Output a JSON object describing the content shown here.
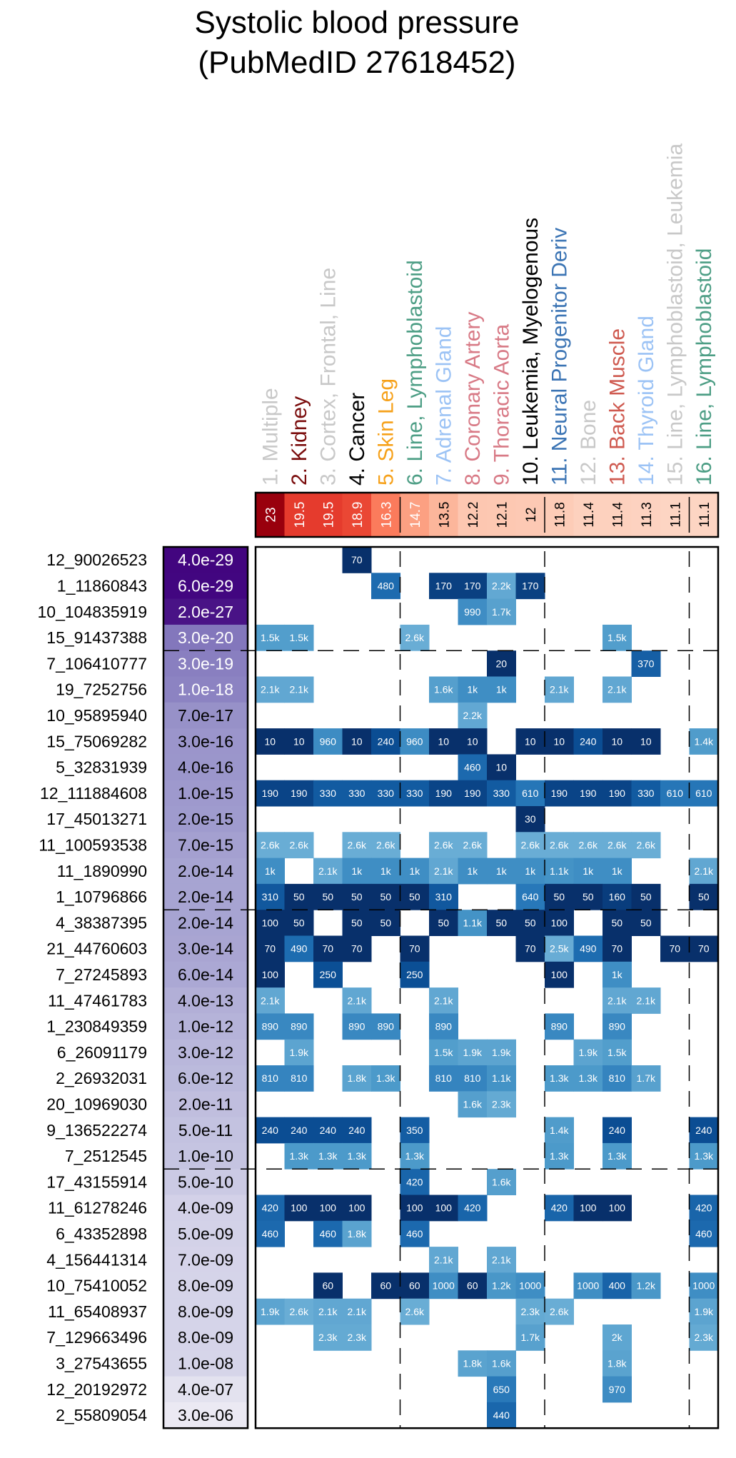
{
  "chart_data": {
    "type": "heatmap",
    "title": "Systolic blood pressure",
    "subtitle": "(PubMedID 27618452)",
    "columns": [
      {
        "label": "1. Multiple",
        "color": "#c8c8c8",
        "enrichment": "23"
      },
      {
        "label": "2. Kidney",
        "color": "#7a0c0c",
        "enrichment": "19.5"
      },
      {
        "label": "3. Cortex, Frontal, Line",
        "color": "#c8c8c8",
        "enrichment": "19.5"
      },
      {
        "label": "4. Cancer",
        "color": "#000000",
        "enrichment": "18.9"
      },
      {
        "label": "5. Skin Leg",
        "color": "#f6a11a",
        "enrichment": "16.3"
      },
      {
        "label": "6. Line, Lymphoblastoid",
        "color": "#4d9e85",
        "enrichment": "14.7"
      },
      {
        "label": "7. Adrenal Gland",
        "color": "#9cc3f5",
        "enrichment": "13.5"
      },
      {
        "label": "8. Coronary Artery",
        "color": "#d87a86",
        "enrichment": "12.2"
      },
      {
        "label": "9. Thoracic Aorta",
        "color": "#d87a86",
        "enrichment": "12.1"
      },
      {
        "label": "10. Leukemia, Myelogenous",
        "color": "#000000",
        "enrichment": "12"
      },
      {
        "label": "11. Neural Progenitor Deriv",
        "color": "#3b74b4",
        "enrichment": "11.8"
      },
      {
        "label": "12. Bone",
        "color": "#c8c8c8",
        "enrichment": "11.4"
      },
      {
        "label": "13. Back Muscle",
        "color": "#cf5a50",
        "enrichment": "11.4"
      },
      {
        "label": "14. Thyroid Gland",
        "color": "#9cc3f5",
        "enrichment": "11.3"
      },
      {
        "label": "15. Line, Lymphoblastoid, Leukemia",
        "color": "#c8c8c8",
        "enrichment": "11.1"
      },
      {
        "label": "16. Line, Lymphoblastoid",
        "color": "#4d9e85",
        "enrichment": "11.1"
      }
    ],
    "enrichment_range": [
      11.1,
      23
    ],
    "rows": [
      {
        "snp": "12_90026523",
        "pvalue": "4.0e-29",
        "cells": [
          "",
          "",
          "",
          "70",
          "",
          "",
          "",
          "",
          "",
          "",
          "",
          "",
          "",
          "",
          "",
          ""
        ]
      },
      {
        "snp": "1_11860843",
        "pvalue": "6.0e-29",
        "cells": [
          "",
          "",
          "",
          "",
          "480",
          "",
          "170",
          "170",
          "2.2k",
          "170",
          "",
          "",
          "",
          "",
          "",
          ""
        ]
      },
      {
        "snp": "10_104835919",
        "pvalue": "2.0e-27",
        "cells": [
          "",
          "",
          "",
          "",
          "",
          "",
          "",
          "990",
          "1.7k",
          "",
          "",
          "",
          "",
          "",
          "",
          ""
        ]
      },
      {
        "snp": "15_91437388",
        "pvalue": "3.0e-20",
        "cells": [
          "1.5k",
          "1.5k",
          "",
          "",
          "",
          "2.6k",
          "",
          "",
          "",
          "",
          "",
          "",
          "1.5k",
          "",
          "",
          ""
        ]
      },
      {
        "snp": "7_106410777",
        "pvalue": "3.0e-19",
        "cells": [
          "",
          "",
          "",
          "",
          "",
          "",
          "",
          "",
          "20",
          "",
          "",
          "",
          "",
          "370",
          "",
          ""
        ]
      },
      {
        "snp": "19_7252756",
        "pvalue": "1.0e-18",
        "cells": [
          "2.1k",
          "2.1k",
          "",
          "",
          "",
          "",
          "1.6k",
          "1k",
          "1k",
          "",
          "2.1k",
          "",
          "2.1k",
          "",
          "",
          ""
        ]
      },
      {
        "snp": "10_95895940",
        "pvalue": "7.0e-17",
        "cells": [
          "",
          "",
          "",
          "",
          "",
          "",
          "",
          "2.2k",
          "",
          "",
          "",
          "",
          "",
          "",
          "",
          ""
        ]
      },
      {
        "snp": "15_75069282",
        "pvalue": "3.0e-16",
        "cells": [
          "10",
          "10",
          "960",
          "10",
          "240",
          "960",
          "10",
          "10",
          "",
          "10",
          "10",
          "240",
          "10",
          "10",
          "",
          "1.4k"
        ]
      },
      {
        "snp": "5_32831939",
        "pvalue": "4.0e-16",
        "cells": [
          "",
          "",
          "",
          "",
          "",
          "",
          "",
          "460",
          "10",
          "",
          "",
          "",
          "",
          "",
          "",
          ""
        ]
      },
      {
        "snp": "12_111884608",
        "pvalue": "1.0e-15",
        "cells": [
          "190",
          "190",
          "330",
          "330",
          "330",
          "330",
          "190",
          "190",
          "330",
          "610",
          "190",
          "190",
          "190",
          "330",
          "610",
          "610"
        ]
      },
      {
        "snp": "17_45013271",
        "pvalue": "2.0e-15",
        "cells": [
          "",
          "",
          "",
          "",
          "",
          "",
          "",
          "",
          "",
          "30",
          "",
          "",
          "",
          "",
          "",
          ""
        ]
      },
      {
        "snp": "11_100593538",
        "pvalue": "7.0e-15",
        "cells": [
          "2.6k",
          "2.6k",
          "",
          "2.6k",
          "2.6k",
          "",
          "2.6k",
          "2.6k",
          "",
          "2.6k",
          "2.6k",
          "2.6k",
          "2.6k",
          "2.6k",
          "",
          ""
        ]
      },
      {
        "snp": "11_1890990",
        "pvalue": "2.0e-14",
        "cells": [
          "1k",
          "",
          "2.1k",
          "1k",
          "1k",
          "1k",
          "2.1k",
          "1k",
          "1k",
          "1k",
          "1.1k",
          "1k",
          "1k",
          "",
          "",
          "2.1k"
        ]
      },
      {
        "snp": "1_10796866",
        "pvalue": "2.0e-14",
        "cells": [
          "310",
          "50",
          "50",
          "50",
          "50",
          "50",
          "310",
          "",
          "",
          "640",
          "50",
          "50",
          "160",
          "50",
          "",
          "50"
        ]
      },
      {
        "snp": "4_38387395",
        "pvalue": "2.0e-14",
        "cells": [
          "100",
          "50",
          "",
          "50",
          "50",
          "",
          "50",
          "1.1k",
          "50",
          "50",
          "100",
          "",
          "50",
          "50",
          "",
          ""
        ]
      },
      {
        "snp": "21_44760603",
        "pvalue": "3.0e-14",
        "cells": [
          "70",
          "490",
          "70",
          "70",
          "",
          "70",
          "",
          "",
          "",
          "70",
          "2.5k",
          "490",
          "70",
          "",
          "70",
          "70"
        ]
      },
      {
        "snp": "7_27245893",
        "pvalue": "6.0e-14",
        "cells": [
          "100",
          "",
          "250",
          "",
          "",
          "250",
          "",
          "",
          "",
          "",
          "100",
          "",
          "1k",
          "",
          "",
          ""
        ]
      },
      {
        "snp": "11_47461783",
        "pvalue": "4.0e-13",
        "cells": [
          "2.1k",
          "",
          "",
          "2.1k",
          "",
          "",
          "2.1k",
          "",
          "",
          "",
          "",
          "",
          "2.1k",
          "2.1k",
          "",
          ""
        ]
      },
      {
        "snp": "1_230849359",
        "pvalue": "1.0e-12",
        "cells": [
          "890",
          "890",
          "",
          "890",
          "890",
          "",
          "890",
          "",
          "",
          "",
          "890",
          "",
          "890",
          "",
          "",
          ""
        ]
      },
      {
        "snp": "6_26091179",
        "pvalue": "3.0e-12",
        "cells": [
          "",
          "1.9k",
          "",
          "",
          "",
          "",
          "1.5k",
          "1.9k",
          "1.9k",
          "",
          "",
          "1.9k",
          "1.5k",
          "",
          "",
          ""
        ]
      },
      {
        "snp": "2_26932031",
        "pvalue": "6.0e-12",
        "cells": [
          "810",
          "810",
          "",
          "1.8k",
          "1.3k",
          "",
          "810",
          "810",
          "1.1k",
          "",
          "1.3k",
          "1.3k",
          "810",
          "1.7k",
          "",
          ""
        ]
      },
      {
        "snp": "20_10969030",
        "pvalue": "2.0e-11",
        "cells": [
          "",
          "",
          "",
          "",
          "",
          "",
          "",
          "1.6k",
          "2.3k",
          "",
          "",
          "",
          "",
          "",
          "",
          ""
        ]
      },
      {
        "snp": "9_136522274",
        "pvalue": "5.0e-11",
        "cells": [
          "240",
          "240",
          "240",
          "240",
          "",
          "350",
          "",
          "",
          "",
          "",
          "1.4k",
          "",
          "240",
          "",
          "",
          "240"
        ]
      },
      {
        "snp": "7_2512545",
        "pvalue": "1.0e-10",
        "cells": [
          "",
          "1.3k",
          "1.3k",
          "1.3k",
          "",
          "1.3k",
          "",
          "",
          "",
          "",
          "1.3k",
          "",
          "1.3k",
          "",
          "",
          "1.3k"
        ]
      },
      {
        "snp": "17_43155914",
        "pvalue": "5.0e-10",
        "cells": [
          "",
          "",
          "",
          "",
          "",
          "420",
          "",
          "",
          "1.6k",
          "",
          "",
          "",
          "",
          "",
          "",
          ""
        ]
      },
      {
        "snp": "11_61278246",
        "pvalue": "4.0e-09",
        "cells": [
          "420",
          "100",
          "100",
          "100",
          "",
          "100",
          "100",
          "420",
          "",
          "",
          "420",
          "100",
          "100",
          "",
          "",
          "420"
        ]
      },
      {
        "snp": "6_43352898",
        "pvalue": "5.0e-09",
        "cells": [
          "460",
          "",
          "460",
          "1.8k",
          "",
          "460",
          "",
          "",
          "",
          "",
          "",
          "",
          "",
          "",
          "",
          "460"
        ]
      },
      {
        "snp": "4_156441314",
        "pvalue": "7.0e-09",
        "cells": [
          "",
          "",
          "",
          "",
          "",
          "",
          "2.1k",
          "",
          "2.1k",
          "",
          "",
          "",
          "",
          "",
          "",
          ""
        ]
      },
      {
        "snp": "10_75410052",
        "pvalue": "8.0e-09",
        "cells": [
          "",
          "",
          "60",
          "",
          "60",
          "60",
          "1000",
          "60",
          "1.2k",
          "1000",
          "",
          "1000",
          "400",
          "1.2k",
          "",
          "1000"
        ]
      },
      {
        "snp": "11_65408937",
        "pvalue": "8.0e-09",
        "cells": [
          "1.9k",
          "2.6k",
          "2.1k",
          "2.1k",
          "",
          "2.6k",
          "",
          "",
          "",
          "2.3k",
          "2.6k",
          "",
          "",
          "",
          "",
          "1.9k"
        ]
      },
      {
        "snp": "7_129663496",
        "pvalue": "8.0e-09",
        "cells": [
          "",
          "",
          "2.3k",
          "2.3k",
          "",
          "",
          "",
          "",
          "",
          "1.7k",
          "",
          "",
          "2k",
          "",
          "",
          "2.3k"
        ]
      },
      {
        "snp": "3_27543655",
        "pvalue": "1.0e-08",
        "cells": [
          "",
          "",
          "",
          "",
          "",
          "",
          "",
          "1.8k",
          "1.6k",
          "",
          "",
          "",
          "1.8k",
          "",
          "",
          ""
        ]
      },
      {
        "snp": "12_20192972",
        "pvalue": "4.0e-07",
        "cells": [
          "",
          "",
          "",
          "",
          "",
          "",
          "",
          "",
          "650",
          "",
          "",
          "",
          "970",
          "",
          "",
          ""
        ]
      },
      {
        "snp": "2_55809054",
        "pvalue": "3.0e-06",
        "cells": [
          "",
          "",
          "",
          "",
          "",
          "",
          "",
          "",
          "440",
          "",
          "",
          "",
          "",
          "",
          "",
          ""
        ]
      }
    ],
    "row_group_breaks_after": [
      4,
      14,
      24
    ],
    "col_group_breaks_after": [
      5,
      10,
      15
    ],
    "legend": "none"
  }
}
